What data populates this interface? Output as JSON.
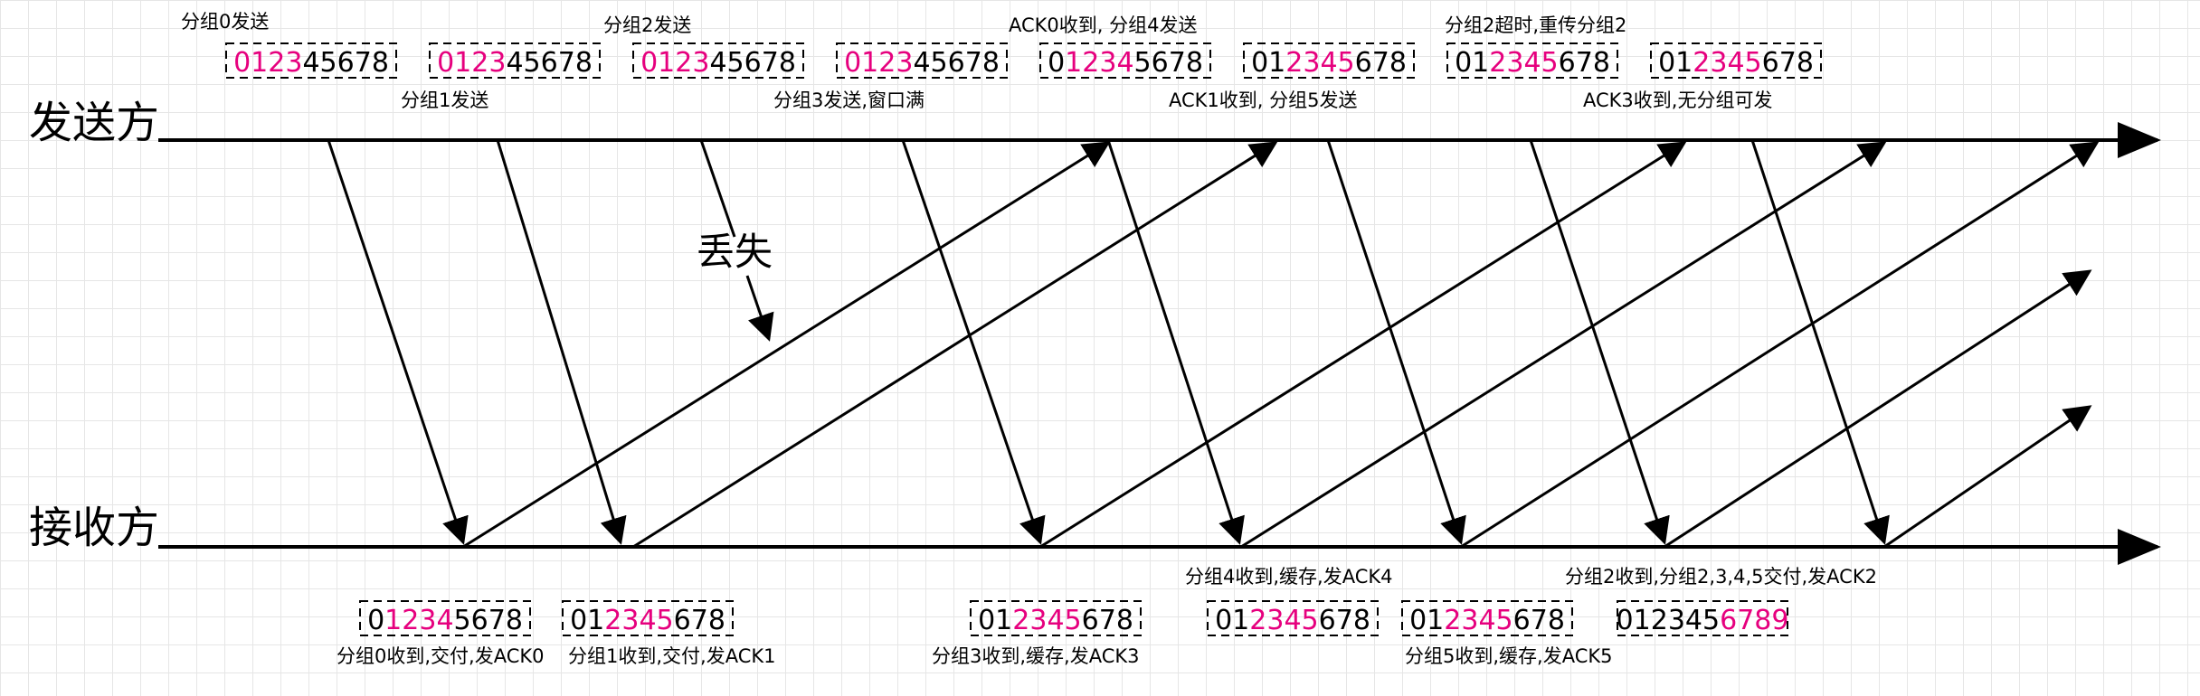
{
  "parties": {
    "sender": "发送方",
    "receiver": "接收方"
  },
  "lost_label": "丢失",
  "colors": {
    "highlight": "#e6007e",
    "normal": "#000000",
    "line": "#000000"
  },
  "sender_windows": [
    {
      "seq": "012345678",
      "hl_from": 0,
      "hl_to": 3
    },
    {
      "seq": "012345678",
      "hl_from": 0,
      "hl_to": 3
    },
    {
      "seq": "012345678",
      "hl_from": 0,
      "hl_to": 3
    },
    {
      "seq": "012345678",
      "hl_from": 0,
      "hl_to": 3
    },
    {
      "seq": "012345678",
      "hl_from": 1,
      "hl_to": 4
    },
    {
      "seq": "012345678",
      "hl_from": 2,
      "hl_to": 5
    },
    {
      "seq": "012345678",
      "hl_from": 2,
      "hl_to": 5
    },
    {
      "seq": "012345678",
      "hl_from": 2,
      "hl_to": 5
    }
  ],
  "receiver_windows": [
    {
      "seq": "012345678",
      "hl_from": 1,
      "hl_to": 4
    },
    {
      "seq": "012345678",
      "hl_from": 2,
      "hl_to": 5
    },
    {
      "seq": "012345678",
      "hl_from": 2,
      "hl_to": 5
    },
    {
      "seq": "012345678",
      "hl_from": 2,
      "hl_to": 5
    },
    {
      "seq": "012345678",
      "hl_from": 2,
      "hl_to": 5
    },
    {
      "seq": "0123456789",
      "hl_from": 6,
      "hl_to": 9
    }
  ],
  "sender_notes": [
    "分组0发送",
    "分组1发送",
    "分组2发送",
    "分组3发送,窗口满",
    "ACK0收到, 分组4发送",
    "ACK1收到, 分组5发送",
    "分组2超时,重传分组2",
    "ACK3收到,无分组可发"
  ],
  "receiver_notes": [
    "分组0收到,交付,发ACK0",
    "分组1收到,交付,发ACK1",
    "分组3收到,缓存,发ACK3",
    "分组4收到,缓存,发ACK4",
    "分组5收到,缓存,发ACK5",
    "分组2收到,分组2,3,4,5交付,发ACK2"
  ]
}
